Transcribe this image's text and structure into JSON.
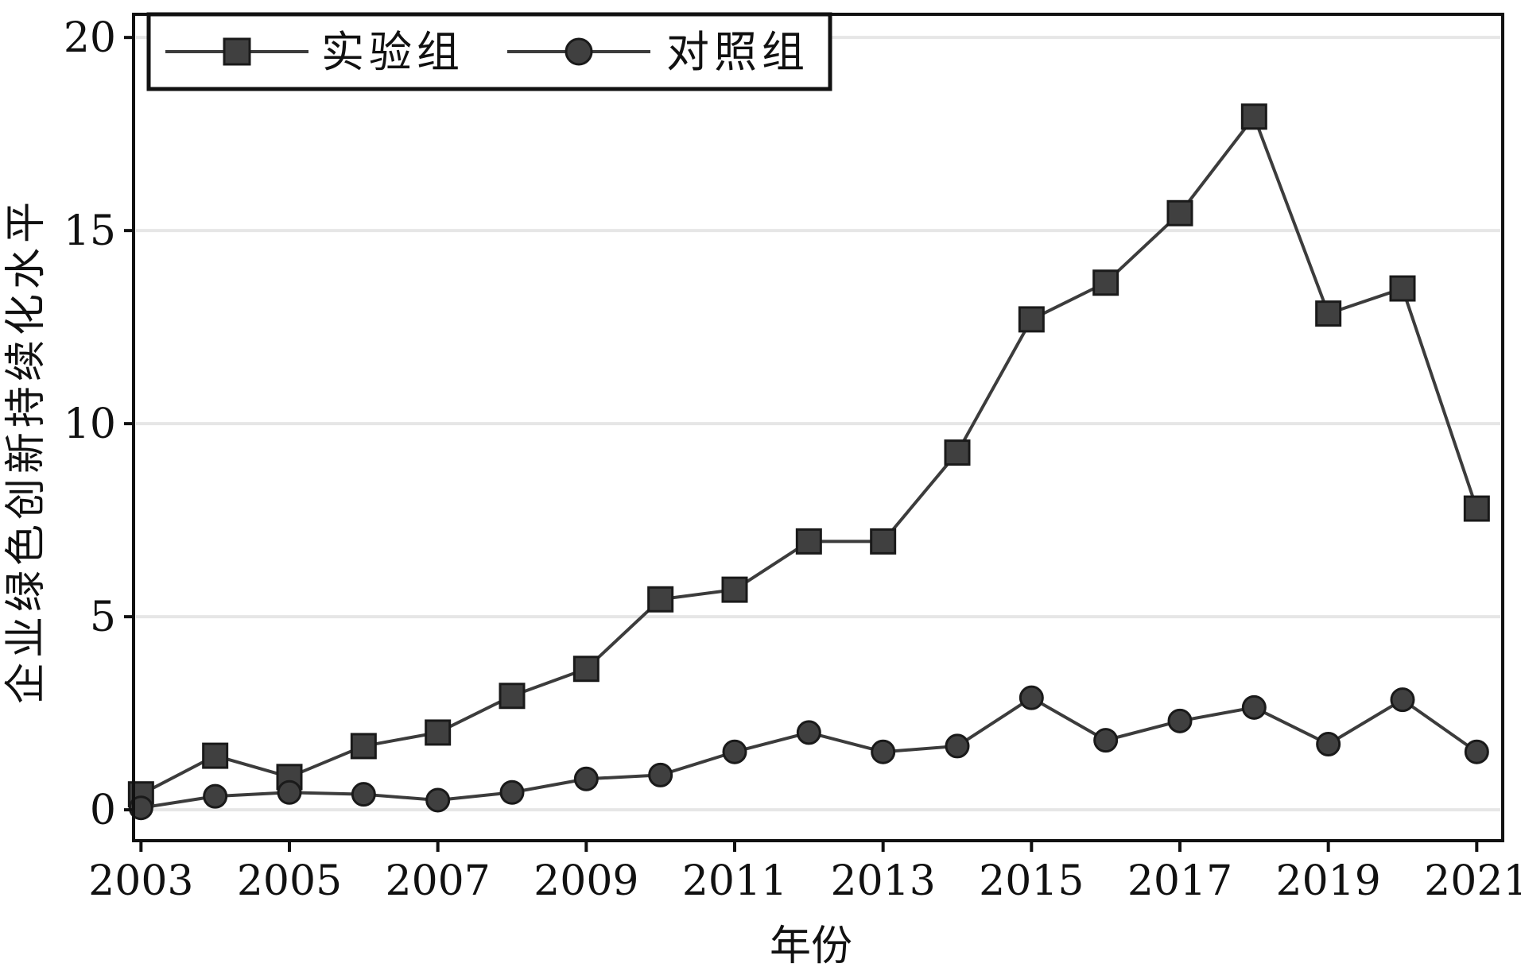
{
  "chart_data": {
    "type": "line",
    "title": "",
    "xlabel": "年份",
    "ylabel": "企业绿色创新持续化水平",
    "x": [
      2003,
      2004,
      2005,
      2006,
      2007,
      2008,
      2009,
      2010,
      2011,
      2012,
      2013,
      2014,
      2015,
      2016,
      2017,
      2018,
      2019,
      2020,
      2021
    ],
    "xticks": [
      "2003",
      "2005",
      "2007",
      "2009",
      "2011",
      "2013",
      "2015",
      "2017",
      "2019",
      "2021"
    ],
    "xlim": [
      2002.9,
      2021.35
    ],
    "yticks": [
      "0",
      "5",
      "10",
      "15",
      "20"
    ],
    "ylim": [
      -0.8,
      20.6
    ],
    "grid": "horizontal",
    "legend_position": "top-left",
    "series": [
      {
        "name": "实验组",
        "marker": "square",
        "color": "#3a3a3a",
        "values": [
          0.4,
          1.4,
          0.85,
          1.65,
          2.0,
          2.95,
          3.65,
          5.45,
          5.7,
          6.95,
          6.95,
          9.25,
          12.7,
          13.65,
          15.45,
          17.95,
          12.85,
          13.5,
          7.8
        ]
      },
      {
        "name": "对照组",
        "marker": "circle",
        "color": "#4a4a4a",
        "values": [
          0.05,
          0.35,
          0.45,
          0.4,
          0.25,
          0.45,
          0.8,
          0.9,
          1.5,
          2.0,
          1.5,
          1.65,
          2.9,
          1.8,
          2.3,
          2.65,
          1.7,
          2.85,
          1.5
        ]
      }
    ],
    "colors": {
      "axis": "#111111",
      "grid": "#e6e6e6",
      "series_line": "#3c3c3c",
      "marker_fill": "#404040"
    }
  }
}
